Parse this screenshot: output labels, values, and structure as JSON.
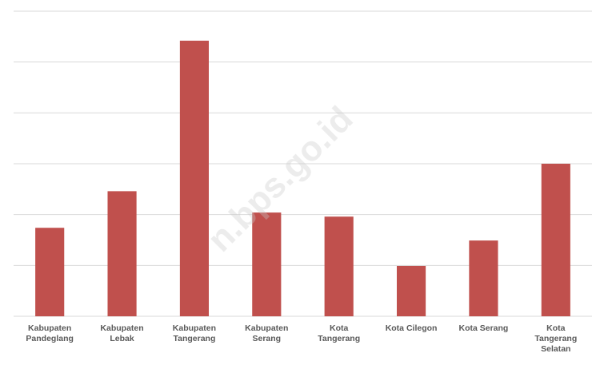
{
  "chart_data": {
    "type": "bar",
    "categories": [
      "Kabupaten Pandeglang",
      "Kabupaten Lebak",
      "Kabupaten Tangerang",
      "Kabupaten Serang",
      "Kota Tangerang",
      "Kota Cilegon",
      "Kota Serang",
      "Kota Tangerang Selatan"
    ],
    "values": [
      1.74,
      2.46,
      5.42,
      2.04,
      1.96,
      0.99,
      1.49,
      3.0
    ],
    "color": "#c0504d",
    "ylim": [
      0,
      6
    ],
    "yticks": [
      0,
      1,
      2,
      3,
      4,
      5,
      6
    ],
    "grid": true,
    "watermark": "n.bps.go.id"
  }
}
